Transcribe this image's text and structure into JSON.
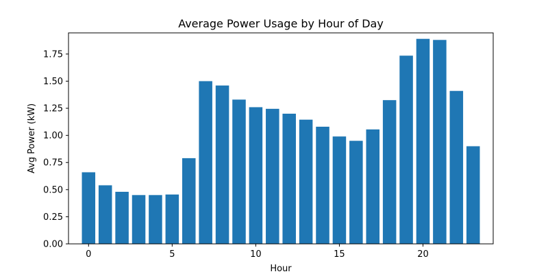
{
  "chart_data": {
    "type": "bar",
    "title": "Average Power Usage by Hour of Day",
    "xlabel": "Hour",
    "ylabel": "Avg Power (kW)",
    "categories": [
      0,
      1,
      2,
      3,
      4,
      5,
      6,
      7,
      8,
      9,
      10,
      11,
      12,
      13,
      14,
      15,
      16,
      17,
      18,
      19,
      20,
      21,
      22,
      23
    ],
    "values": [
      0.66,
      0.54,
      0.48,
      0.45,
      0.45,
      0.455,
      0.79,
      1.5,
      1.46,
      1.33,
      1.26,
      1.245,
      1.2,
      1.145,
      1.08,
      0.99,
      0.95,
      1.055,
      1.325,
      1.735,
      1.89,
      1.88,
      1.41,
      0.9
    ],
    "xlim": [
      -1.2,
      24.2
    ],
    "ylim": [
      0,
      1.945
    ],
    "xticks": [
      0,
      5,
      10,
      15,
      20
    ],
    "yticks": [
      0.0,
      0.25,
      0.5,
      0.75,
      1.0,
      1.25,
      1.5,
      1.75
    ],
    "ytick_labels": [
      "0.00",
      "0.25",
      "0.50",
      "0.75",
      "1.00",
      "1.25",
      "1.50",
      "1.75"
    ],
    "bar_color": "#1f77b4",
    "grid": false,
    "legend": "none"
  }
}
